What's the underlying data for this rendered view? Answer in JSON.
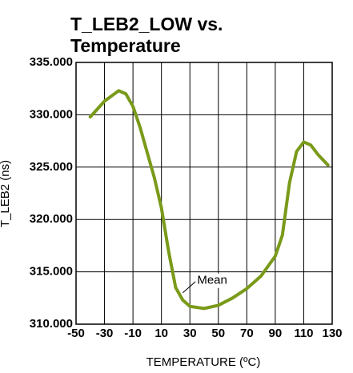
{
  "chart_data": {
    "type": "line",
    "title": [
      "T_LEB2_LOW vs.",
      "Temperature"
    ],
    "x_label": "TEMPERATURE (ºC)",
    "y_label": "T_LEB2 (ns)",
    "x": [
      -40,
      -30,
      -20,
      -15,
      -10,
      -5,
      0,
      5,
      10,
      15,
      20,
      25,
      30,
      40,
      50,
      60,
      70,
      80,
      90,
      95,
      100,
      105,
      110,
      115,
      120,
      127
    ],
    "series": [
      {
        "name": "Mean",
        "color": "#7a9a1a",
        "values": [
          329.8,
          331.3,
          332.3,
          332.0,
          330.8,
          328.8,
          326.4,
          324.0,
          321.1,
          317.0,
          313.5,
          312.3,
          311.7,
          311.5,
          311.8,
          312.5,
          313.4,
          314.6,
          316.5,
          318.5,
          323.5,
          326.5,
          327.4,
          327.1,
          326.2,
          325.2
        ]
      }
    ],
    "annotations": [
      {
        "text": "Mean",
        "x": 25,
        "y": 313.0
      }
    ],
    "xlim": [
      -50,
      130
    ],
    "xticks": [
      -50,
      -30,
      -10,
      10,
      30,
      50,
      70,
      90,
      110,
      130
    ],
    "ylim": [
      310,
      335
    ],
    "yticks": [
      {
        "value": 310,
        "label": "310.000"
      },
      {
        "value": 315,
        "label": "315.000"
      },
      {
        "value": 320,
        "label": "320.000"
      },
      {
        "value": 325,
        "label": "325.000"
      },
      {
        "value": 330,
        "label": "330.000"
      },
      {
        "value": 335,
        "label": "335.000"
      }
    ],
    "grid": true
  }
}
